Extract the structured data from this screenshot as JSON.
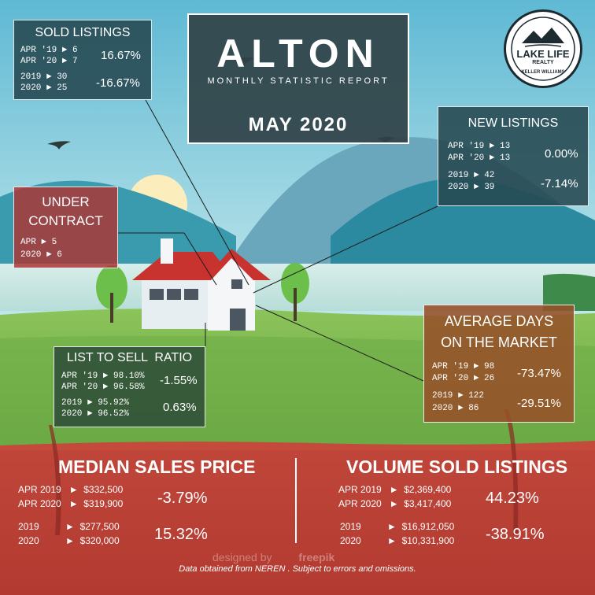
{
  "header": {
    "city": "ALTON",
    "subtitle": "MONTHLY STATISTIC REPORT",
    "period": "MAY 2020"
  },
  "logo": {
    "text_top": "LAKE LIFE",
    "text_mid": "REALTY",
    "text_ring": "KELLER WILLIAMS"
  },
  "sold_listings": {
    "title": "SOLD LISTINGS",
    "r1": "APR '19  ► 6",
    "r2": "APR '20  ► 7",
    "p1": "16.67%",
    "r3": "2019     ► 30",
    "r4": "2020     ► 25",
    "p2": "-16.67%"
  },
  "new_listings": {
    "title": "NEW LISTINGS",
    "r1": "APR '19  ► 13",
    "r2": "APR '20  ► 13",
    "p1": "0.00%",
    "r3": "2019     ► 42",
    "r4": "2020     ► 39",
    "p2": "-7.14%"
  },
  "under_contract": {
    "title1": "UNDER",
    "title2": "CONTRACT",
    "r1": "APR         ►     5",
    "r2": "2020        ►     6"
  },
  "list_to_sell": {
    "title": "LIST TO SELL  RATIO",
    "r1": "APR '19  ► 98.10%",
    "r2": "APR '20  ► 96.58%",
    "p1": "-1.55%",
    "r3": "2019     ► 95.92%",
    "r4": "2020     ► 96.52%",
    "p2": "0.63%"
  },
  "days_on_market": {
    "title1": "AVERAGE DAYS",
    "title2": "ON THE MARKET",
    "r1": "APR '19  ► 98",
    "r2": "APR '20  ► 26",
    "p1": "-73.47%",
    "r3": "2019     ► 122",
    "r4": "2020     ► 86",
    "p2": "-29.51%"
  },
  "median_price": {
    "title": "MEDIAN SALES PRICE",
    "r1": "APR 2019   ►  $332,500",
    "r2": "APR 2020   ►  $319,900",
    "p1": "-3.79%",
    "r3": "2019          ►  $277,500",
    "r4": "2020          ►  $320,000",
    "p2": "15.32%"
  },
  "volume_sold": {
    "title": "VOLUME SOLD LISTINGS",
    "r1": "APR 2019   ►  $2,369,400",
    "r2": "APR 2020   ►  $3,417,400",
    "p1": "44.23%",
    "r3": "2019          ►  $16,912,050",
    "r4": "2020          ►  $10,331,900",
    "p2": "-38.91%"
  },
  "footer": {
    "designed": "designed by",
    "freepik": "freepik",
    "disclaimer": "Data obtained from NEREN . Subject to errors and omissions."
  }
}
